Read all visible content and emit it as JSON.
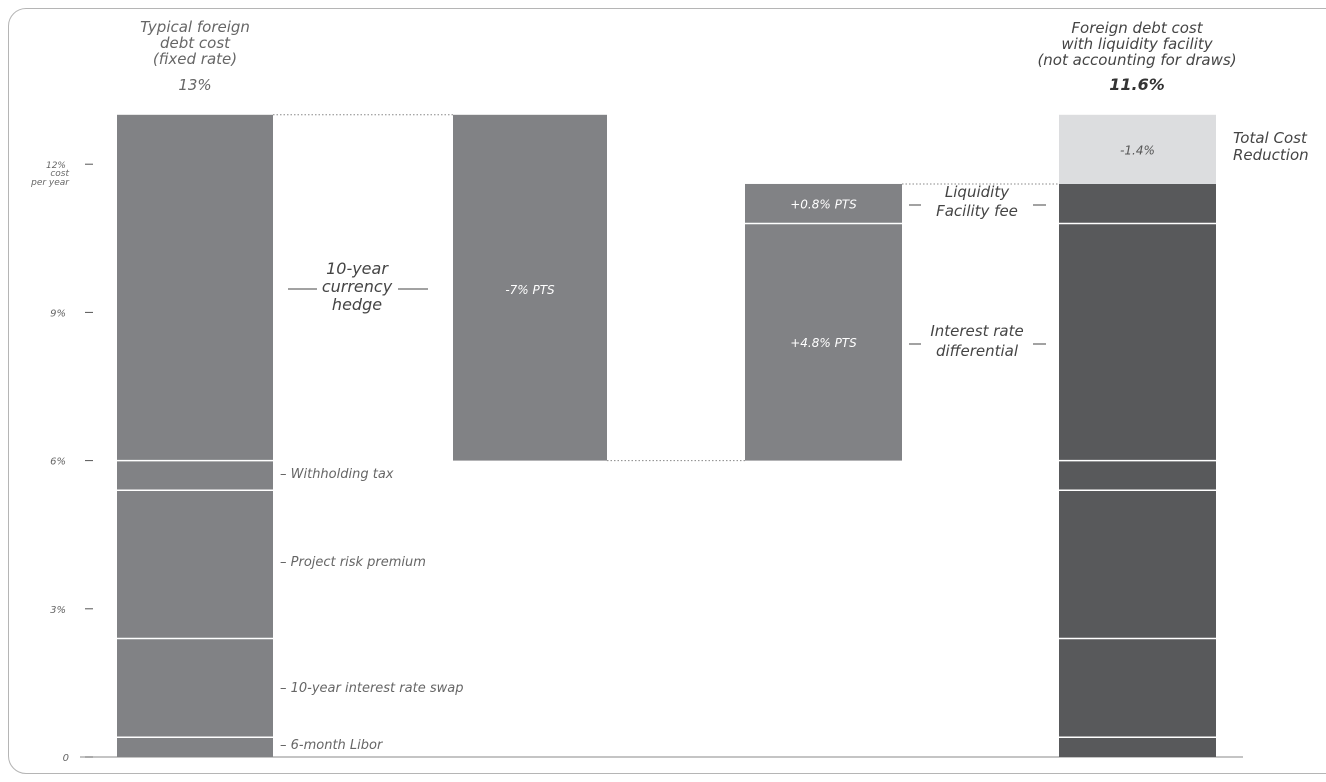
{
  "chart_data": {
    "type": "waterfall",
    "ylim": [
      0,
      13.4
    ],
    "y_ticks": [
      {
        "value": 0,
        "label": "0"
      },
      {
        "value": 3,
        "label": "3%"
      },
      {
        "value": 6,
        "label": "6%"
      },
      {
        "value": 9,
        "label": "9%"
      },
      {
        "value": 12,
        "label": "12%"
      }
    ],
    "y_unit_label": [
      "cost",
      "per year"
    ],
    "colors": {
      "typical_bar": "#818285",
      "step_bar": "#818285",
      "final_bar": "#58595b",
      "reduction_bar": "#dcdddf",
      "axis": "#555555",
      "label": "#666666",
      "dark_label": "#444444"
    },
    "bars": {
      "typical": {
        "title": [
          "Typical foreign",
          "debt cost",
          "(fixed rate)"
        ],
        "value_label": "13%",
        "value": 13,
        "components": [
          {
            "label": "6-month Libor",
            "from": 0,
            "to": 0.4
          },
          {
            "label": "10-year interest rate swap",
            "from": 0.4,
            "to": 2.4
          },
          {
            "label": "Project risk premium",
            "from": 2.4,
            "to": 5.4
          },
          {
            "label": "Withholding tax",
            "from": 5.4,
            "to": 6.0
          },
          {
            "label": "",
            "from": 6.0,
            "to": 13.0
          }
        ],
        "hedge_label": [
          "10-year",
          "currency",
          "hedge"
        ]
      },
      "hedge": {
        "value": -7,
        "label": "-7% PTS",
        "from": 6,
        "to": 13
      },
      "liquidity": {
        "segments": [
          {
            "label": "+4.8% PTS",
            "from": 6.0,
            "to": 10.8,
            "annotation": [
              "Interest rate",
              "differential"
            ]
          },
          {
            "label": "+0.8% PTS",
            "from": 10.8,
            "to": 11.6,
            "annotation": [
              "Liquidity",
              "Facility fee"
            ]
          }
        ]
      },
      "final": {
        "title": [
          "Foreign debt cost",
          "with liquidity facility",
          "(not accounting for draws)"
        ],
        "value_label": "11.6%",
        "value": 11.6,
        "dividers": [
          0.4,
          2.4,
          5.4,
          6.0,
          10.8
        ],
        "reduction": {
          "from": 11.6,
          "to": 13.0,
          "label": "-1.4%",
          "caption": [
            "Total Cost",
            "Reduction"
          ]
        }
      }
    }
  }
}
